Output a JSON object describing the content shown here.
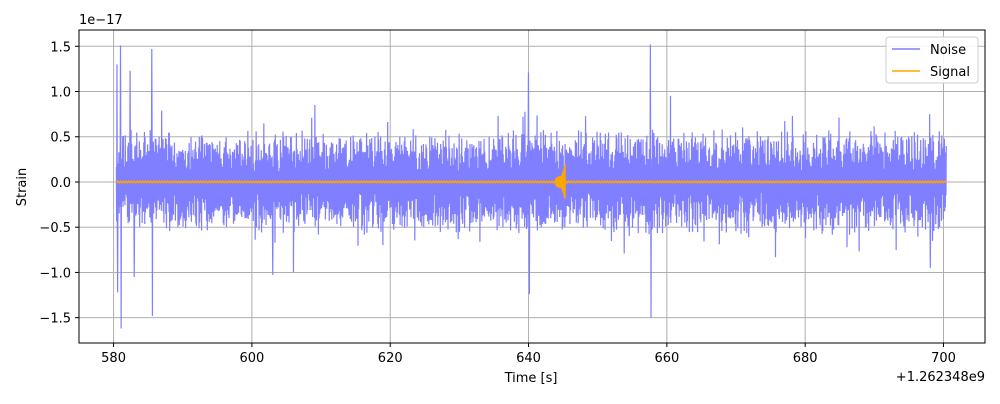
{
  "chart_data": {
    "type": "line",
    "xlabel": "Time [s]",
    "ylabel": "Strain",
    "x_offset_label": "+1.262348e9",
    "y_scale_label": "1e−17",
    "xlim": [
      575,
      706
    ],
    "ylim": [
      -1.78,
      1.68
    ],
    "x_ticks": [
      580,
      600,
      620,
      640,
      660,
      680,
      700
    ],
    "x_tick_labels": [
      "580",
      "600",
      "620",
      "640",
      "660",
      "680",
      "700"
    ],
    "y_ticks": [
      -1.5,
      -1.0,
      -0.5,
      0.0,
      0.5,
      1.0,
      1.5
    ],
    "y_tick_labels": [
      "−1.5",
      "−1.0",
      "−0.5",
      "0.0",
      "0.5",
      "1.0",
      "1.5"
    ],
    "grid": true,
    "legend_position": "top-right",
    "series": [
      {
        "name": "Noise",
        "color": "#7f7fff",
        "x_range": [
          580.4,
          700.4
        ],
        "typical_amplitude": 0.45,
        "spikes": [
          {
            "x": 580.5,
            "y": 1.3
          },
          {
            "x": 580.6,
            "y": -1.22
          },
          {
            "x": 581.0,
            "y": 1.51
          },
          {
            "x": 581.1,
            "y": -1.62
          },
          {
            "x": 582.4,
            "y": 1.23
          },
          {
            "x": 583.0,
            "y": -1.05
          },
          {
            "x": 585.5,
            "y": 1.47
          },
          {
            "x": 585.6,
            "y": -1.48
          },
          {
            "x": 603.0,
            "y": -1.03
          },
          {
            "x": 606.0,
            "y": -1.0
          },
          {
            "x": 640.0,
            "y": 1.21
          },
          {
            "x": 640.1,
            "y": -1.24
          },
          {
            "x": 657.6,
            "y": 1.52
          },
          {
            "x": 657.7,
            "y": -1.5
          },
          {
            "x": 698.0,
            "y": 0.75
          },
          {
            "x": 698.1,
            "y": -0.95
          }
        ]
      },
      {
        "name": "Signal",
        "color": "#ffa500",
        "x_range": [
          580.4,
          700.4
        ],
        "baseline": 0.0,
        "chirp": {
          "x_peak": 645.2,
          "amplitude": 0.2
        }
      }
    ]
  }
}
